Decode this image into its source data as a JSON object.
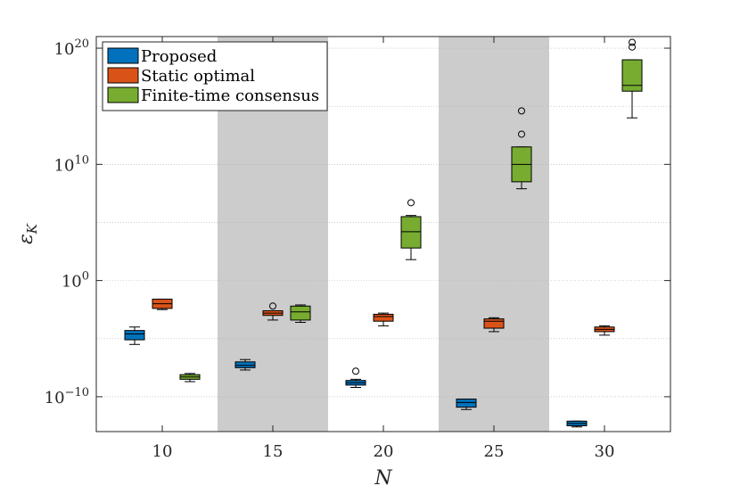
{
  "chart_data": {
    "type": "box",
    "title": "",
    "xlabel": "N",
    "ylabel": "ε_K",
    "yscale": "log",
    "ylim_exponents": [
      -13,
      21
    ],
    "yticks": [
      {
        "exp": -10,
        "base": "10",
        "sup": "−10"
      },
      {
        "exp": 0,
        "base": "10",
        "sup": "0"
      },
      {
        "exp": 10,
        "base": "10",
        "sup": "10"
      },
      {
        "exp": 20,
        "base": "10",
        "sup": "20"
      }
    ],
    "categories": [
      "10",
      "15",
      "20",
      "25",
      "30"
    ],
    "shaded_categories": [
      "15",
      "25"
    ],
    "grid": true,
    "legend_position": "top-left",
    "series": [
      {
        "name": "Proposed",
        "color": "#0072BD",
        "boxes_log10": [
          {
            "whisker_low": -5.5,
            "q1": -5.1,
            "median": -4.6,
            "q3": -4.3,
            "whisker_high": -4.0,
            "outliers": []
          },
          {
            "whisker_low": -7.7,
            "q1": -7.5,
            "median": -7.3,
            "q3": -7.0,
            "whisker_high": -6.8,
            "outliers": []
          },
          {
            "whisker_low": -9.2,
            "q1": -9.0,
            "median": -8.8,
            "q3": -8.6,
            "whisker_high": -8.5,
            "outliers": [
              -7.8
            ]
          },
          {
            "whisker_low": -11.1,
            "q1": -10.9,
            "median": -10.5,
            "q3": -10.2,
            "whisker_high": -10.2,
            "outliers": []
          },
          {
            "whisker_low": -12.6,
            "q1": -12.5,
            "median": -12.3,
            "q3": -12.1,
            "whisker_high": -12.1,
            "outliers": []
          }
        ]
      },
      {
        "name": "Static optimal",
        "color": "#D95319",
        "boxes_log10": [
          {
            "whisker_low": -2.5,
            "q1": -2.4,
            "median": -2.0,
            "q3": -1.6,
            "whisker_high": -1.6,
            "outliers": []
          },
          {
            "whisker_low": -3.4,
            "q1": -3.0,
            "median": -2.8,
            "q3": -2.6,
            "whisker_high": -2.6,
            "outliers": [
              -2.2
            ]
          },
          {
            "whisker_low": -3.9,
            "q1": -3.5,
            "median": -3.1,
            "q3": -2.9,
            "whisker_high": -2.8,
            "outliers": []
          },
          {
            "whisker_low": -4.4,
            "q1": -4.1,
            "median": -3.5,
            "q3": -3.3,
            "whisker_high": -3.2,
            "outliers": []
          },
          {
            "whisker_low": -4.7,
            "q1": -4.4,
            "median": -4.2,
            "q3": -4.0,
            "whisker_high": -3.9,
            "outliers": []
          }
        ]
      },
      {
        "name": "Finite-time consensus",
        "color": "#77AC30",
        "boxes_log10": [
          {
            "whisker_low": -8.7,
            "q1": -8.5,
            "median": -8.3,
            "q3": -8.1,
            "whisker_high": -8.0,
            "outliers": []
          },
          {
            "whisker_low": -3.6,
            "q1": -3.4,
            "median": -2.7,
            "q3": -2.2,
            "whisker_high": -2.1,
            "outliers": []
          },
          {
            "whisker_low": 1.8,
            "q1": 2.8,
            "median": 4.2,
            "q3": 5.5,
            "whisker_high": 5.6,
            "outliers": [
              6.7
            ]
          },
          {
            "whisker_low": 7.9,
            "q1": 8.5,
            "median": 10.0,
            "q3": 11.5,
            "whisker_high": 11.5,
            "outliers": [
              12.6,
              14.6
            ]
          },
          {
            "whisker_low": 14.0,
            "q1": 16.3,
            "median": 16.8,
            "q3": 19.0,
            "whisker_high": 19.0,
            "outliers": [
              20.1,
              20.5
            ]
          }
        ]
      }
    ]
  }
}
